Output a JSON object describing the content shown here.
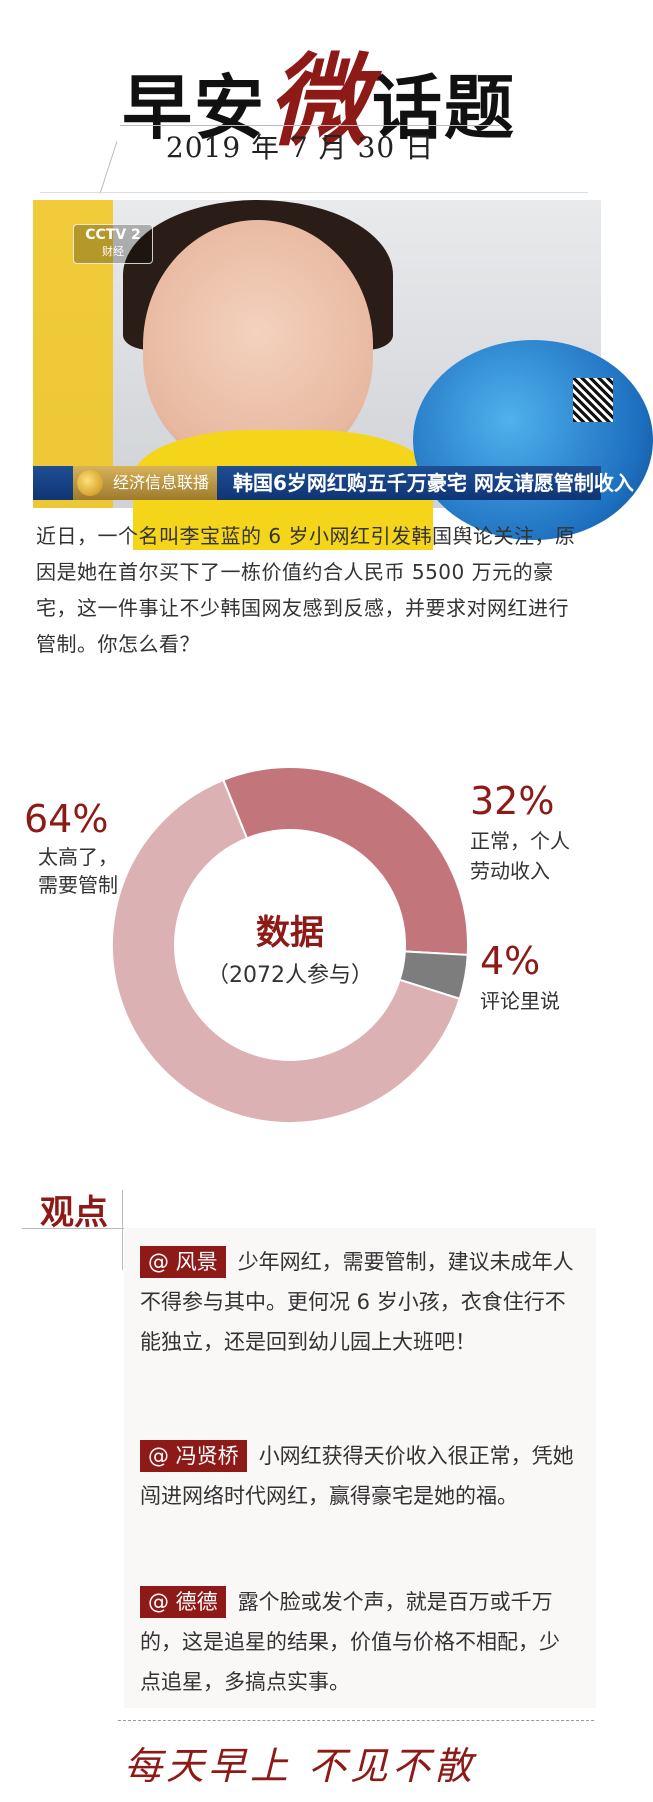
{
  "header": {
    "title_left": "早安",
    "title_red": "微",
    "title_right": "话题",
    "date": "2019 年 7 月 30 日"
  },
  "photo": {
    "logo_text": "CCTV 2",
    "logo_sub": "财经",
    "caption_tag": "经济信息联播",
    "caption": "韩国6岁网红购五千万豪宅 网友请愿管制收入"
  },
  "intro": "近日，一个名叫李宝蓝的 6 岁小网红引发韩国舆论关注，原因是她在首尔买下了一栋价值约合人民币 5500 万元的豪宅，这一件事让不少韩国网友感到反感，并要求对网红进行管制。你怎么看？",
  "chart_data": {
    "type": "pie",
    "donut": true,
    "center_title": "数据",
    "center_sub": "（2072人参与）",
    "slices": [
      {
        "label": "太高了，需要管制",
        "value": 64,
        "pct": "64%",
        "label_lines": [
          "太高了，",
          "需要管制"
        ],
        "color": "#dcb1b3"
      },
      {
        "label": "正常，个人劳动收入",
        "value": 32,
        "pct": "32%",
        "label_lines": [
          "正常，个人",
          "劳动收入"
        ],
        "color": "#c2767b"
      },
      {
        "label": "评论里说",
        "value": 4,
        "pct": "4%",
        "label_lines": [
          "评论里说"
        ],
        "color": "#7d7d7d"
      }
    ]
  },
  "opinions": {
    "header": "观点",
    "items": [
      {
        "name": "@ 风景",
        "text": "少年网红，需要管制，建议未成年人不得参与其中。更何况 6 岁小孩，衣食住行不能独立，还是回到幼儿园上大班吧！"
      },
      {
        "name": "@ 冯贤桥",
        "text": "小网红获得天价收入很正常，凭她闯进网络时代网红，赢得豪宅是她的福。"
      },
      {
        "name": "@ 德德",
        "text": "露个脸或发个声，就是百万或千万的，这是追星的结果，价值与价格不相配，少点追星，多搞点实事。"
      }
    ]
  },
  "footer": {
    "slogan": "每天早上 不见不散"
  }
}
